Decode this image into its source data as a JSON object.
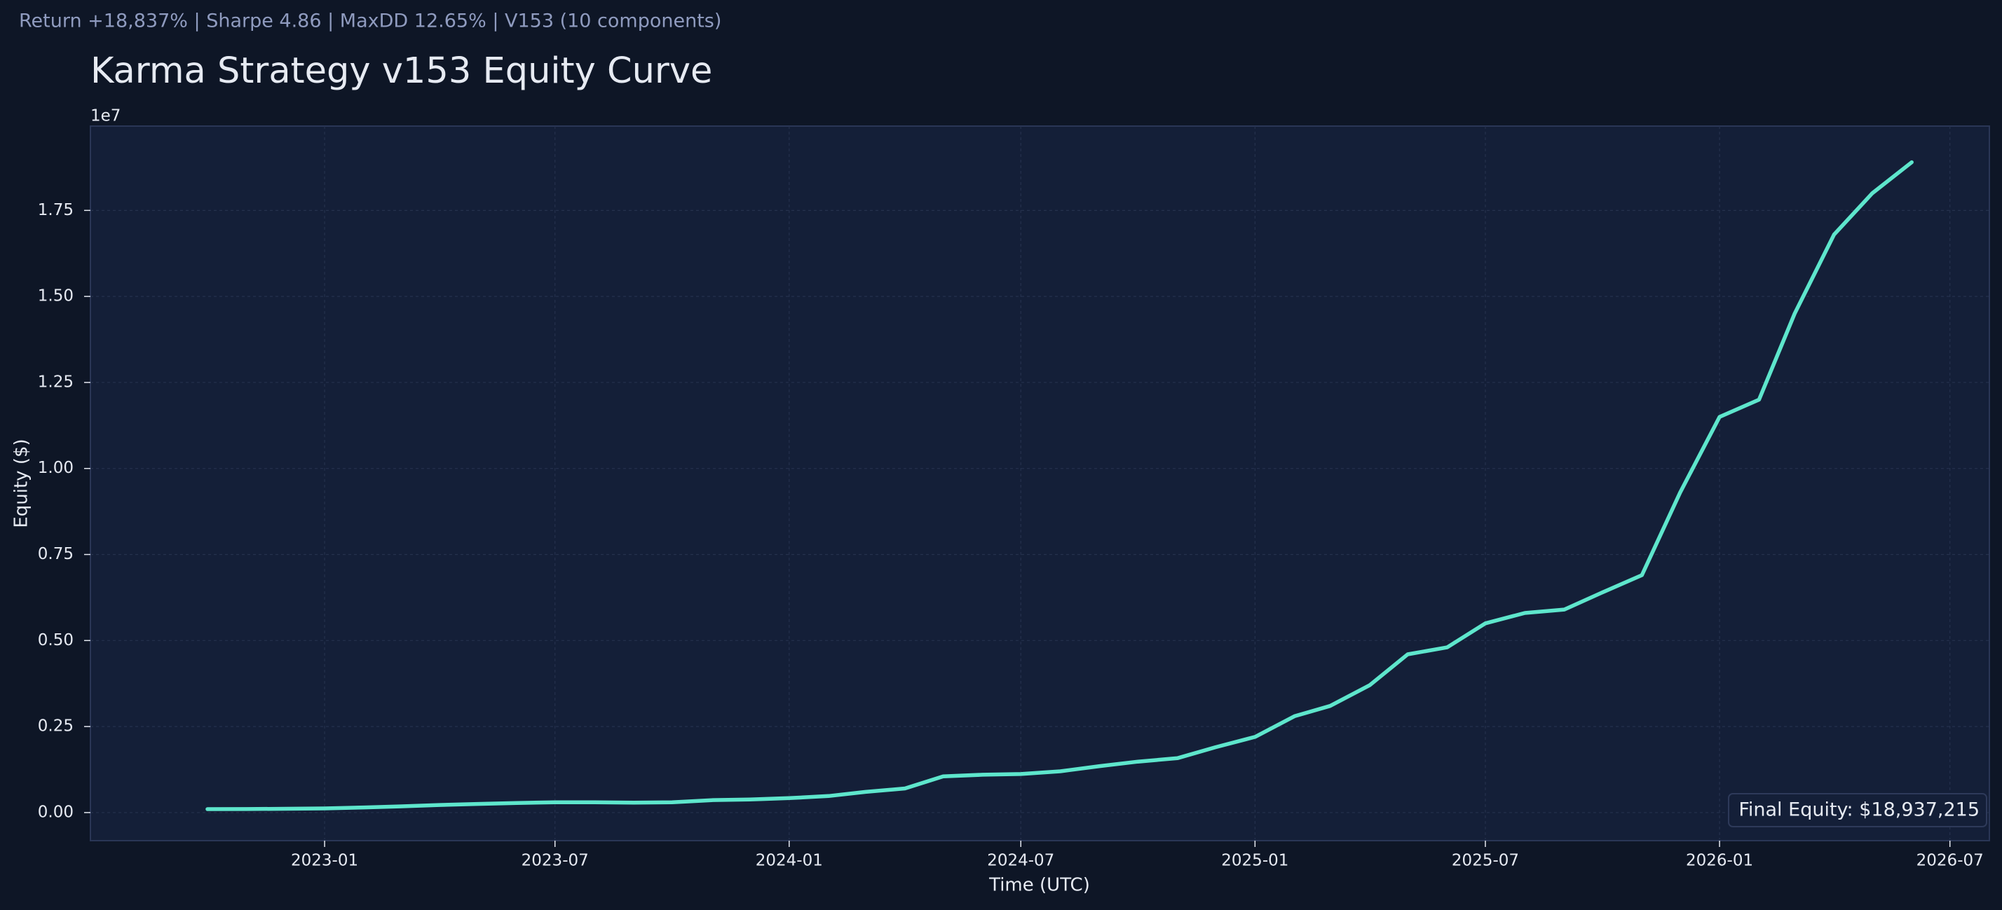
{
  "chart_data": {
    "type": "line",
    "subtitle": "Return +18,837% | Sharpe 4.86 | MaxDD 12.65% | V153 (10 components)",
    "title": "Karma Strategy v153 Equity Curve",
    "y_offset_label": "1e7",
    "y_label": "Equity ($)",
    "x_label": "Time (UTC)",
    "annotation": "Final Equity: $18,937,215",
    "color": "#5ee6cc",
    "grid": true,
    "x": [
      "2022-10",
      "2022-11",
      "2022-12",
      "2023-01",
      "2023-02",
      "2023-03",
      "2023-04",
      "2023-05",
      "2023-06",
      "2023-07",
      "2023-08",
      "2023-09",
      "2023-10",
      "2023-11",
      "2023-12",
      "2024-01",
      "2024-02",
      "2024-03",
      "2024-04",
      "2024-05",
      "2024-06",
      "2024-07",
      "2024-08",
      "2024-09",
      "2024-10",
      "2024-11",
      "2024-12",
      "2025-01",
      "2025-02",
      "2025-03",
      "2025-04",
      "2025-05",
      "2025-06",
      "2025-07",
      "2025-08",
      "2025-09",
      "2025-10",
      "2025-11",
      "2025-12",
      "2026-01",
      "2026-02",
      "2026-03",
      "2026-04",
      "2026-05",
      "2026-06"
    ],
    "values": [
      100000,
      102000,
      110000,
      120000,
      150000,
      180000,
      220000,
      250000,
      280000,
      300000,
      300000,
      290000,
      300000,
      360000,
      380000,
      420000,
      480000,
      600000,
      700000,
      1050000,
      1100000,
      1120000,
      1200000,
      1350000,
      1480000,
      1580000,
      1900000,
      2200000,
      2800000,
      3100000,
      3700000,
      4600000,
      4800000,
      5500000,
      5800000,
      5900000,
      6400000,
      6900000,
      9300000,
      11500000,
      12000000,
      14500000,
      16800000,
      18000000,
      18900000
    ],
    "xlim": [
      "2022-07",
      "2026-08"
    ],
    "xticks": [
      "2023-01",
      "2023-07",
      "2024-01",
      "2024-07",
      "2025-01",
      "2025-07",
      "2026-01",
      "2026-07"
    ],
    "ylim": [
      -816000,
      19950000
    ],
    "yticks": [
      {
        "value": 0,
        "label": "0.00"
      },
      {
        "value": 2500000,
        "label": "0.25"
      },
      {
        "value": 5000000,
        "label": "0.50"
      },
      {
        "value": 7500000,
        "label": "0.75"
      },
      {
        "value": 10000000,
        "label": "1.00"
      },
      {
        "value": 12500000,
        "label": "1.25"
      },
      {
        "value": 15000000,
        "label": "1.50"
      },
      {
        "value": 17500000,
        "label": "1.75"
      }
    ]
  }
}
